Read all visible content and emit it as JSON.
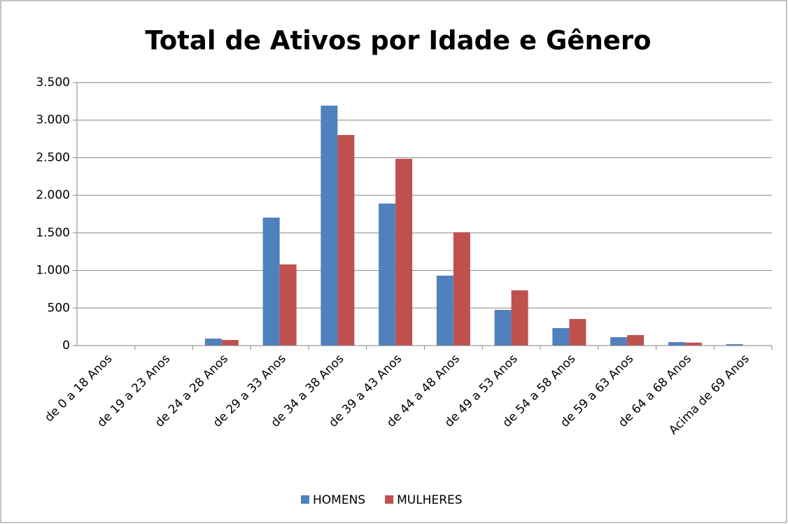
{
  "chart_data": {
    "type": "bar",
    "title": "Total de Ativos por Idade e Gênero",
    "categories": [
      "de 0 a 18 Anos",
      "de 19 a 23 Anos",
      "de 24 a 28 Anos",
      "de 29 a 33 Anos",
      "de 34 a 38 Anos",
      "de 39 a 43 Anos",
      "de 44 a 48 Anos",
      "de 49 a 53 Anos",
      "de 54 a 58 Anos",
      "de 59 a 63 Anos",
      "de 64 a 68 Anos",
      "Acima de 69 Anos"
    ],
    "series": [
      {
        "name": "HOMENS",
        "color": "#4f81bd",
        "values": [
          0,
          0,
          93,
          1703,
          3193,
          1890,
          931,
          475,
          233,
          112,
          47,
          19
        ]
      },
      {
        "name": "MULHERES",
        "color": "#c0504d",
        "values": [
          0,
          0,
          75,
          1080,
          2802,
          2485,
          1508,
          735,
          354,
          140,
          40,
          5
        ]
      }
    ],
    "ylim": [
      0,
      3500
    ],
    "yticks": [
      0,
      500,
      {
        "value": 1000,
        "label": "1.000"
      },
      {
        "value": 1500,
        "label": "1.500"
      },
      {
        "value": 2000,
        "label": "2.000"
      },
      {
        "value": 2500,
        "label": "2.500"
      },
      {
        "value": 3000,
        "label": "3.000"
      },
      {
        "value": 3500,
        "label": "3.500"
      }
    ],
    "grid": true,
    "legend": "bottom"
  }
}
